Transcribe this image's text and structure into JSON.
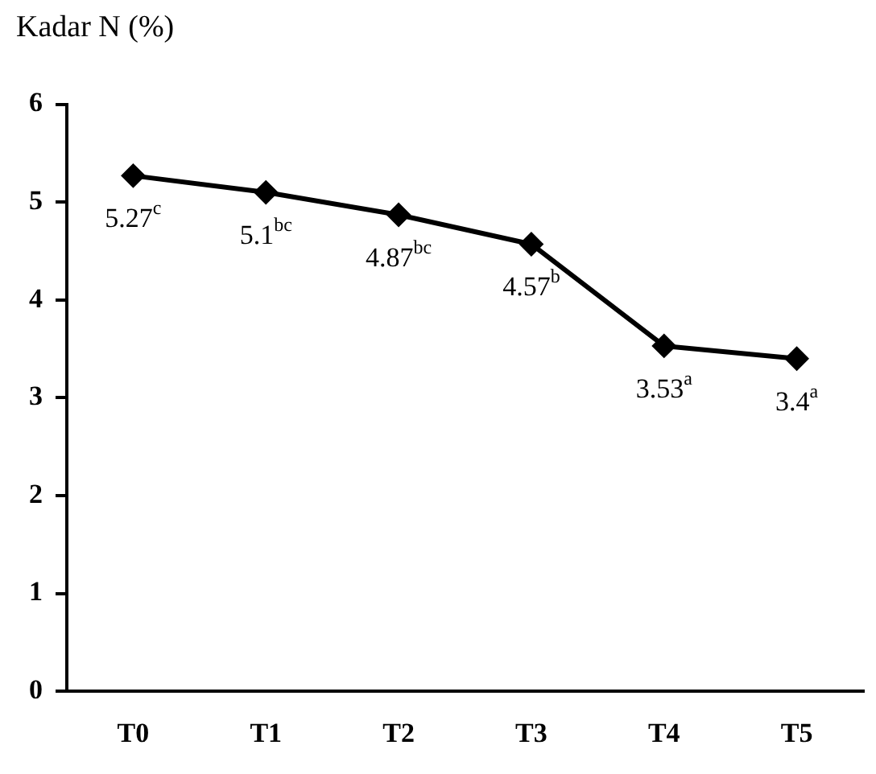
{
  "chart_data": {
    "type": "line",
    "ylabel": "Kadar N (%)",
    "categories": [
      "T0",
      "T1",
      "T2",
      "T3",
      "T4",
      "T5"
    ],
    "series": [
      {
        "color": "#000000",
        "values": [
          5.27,
          5.1,
          4.87,
          4.57,
          3.53,
          3.4
        ],
        "value_labels": [
          "5.27$^{c}$",
          "5.1$^{bc}$",
          "4.87$^{bc}$",
          "4.57$^{b}$",
          "3.53$^{a}$",
          "3.4$^{a}$"
        ]
      }
    ],
    "ylim": [
      0,
      6
    ],
    "yticks": [
      0,
      1,
      2,
      3,
      4,
      5,
      6
    ],
    "grid": false,
    "legend": false,
    "marker": "diamond",
    "line_style": "solid"
  }
}
